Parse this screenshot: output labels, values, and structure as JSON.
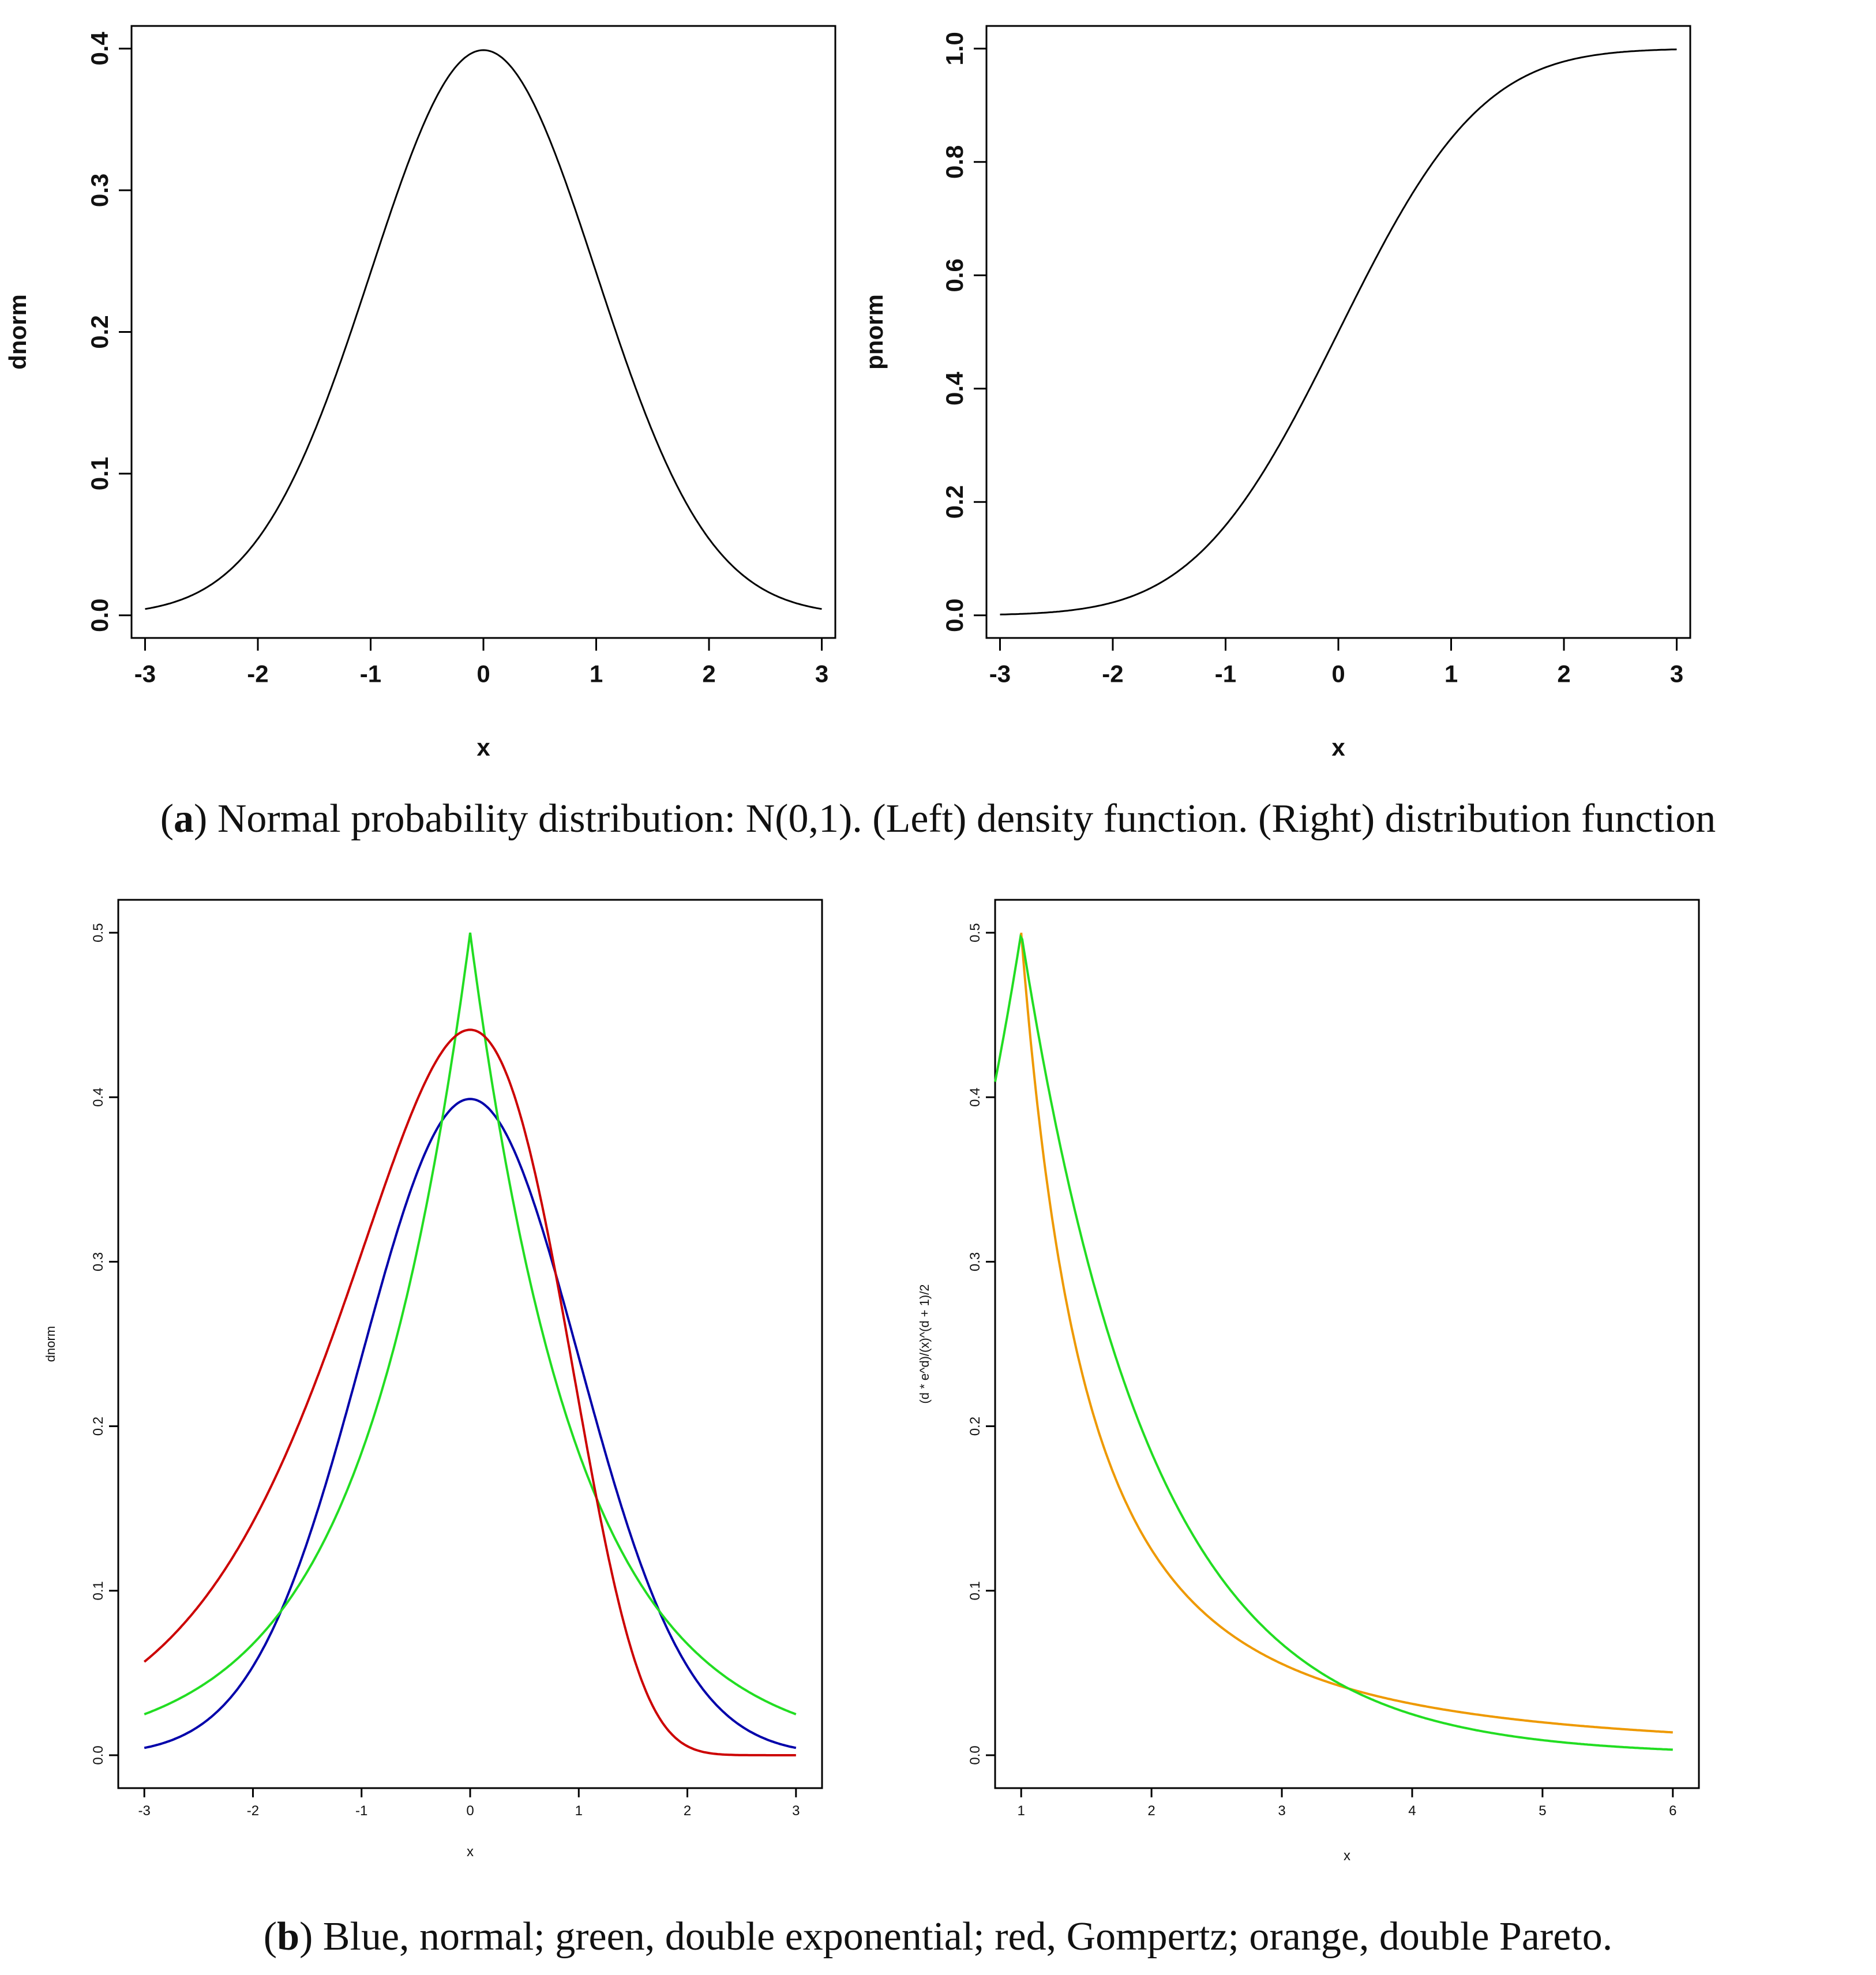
{
  "figure_a": {
    "caption_letter": "a",
    "caption_text": ") Normal probability distribution: N(0,1). (Left) density function. (Right) distribution function"
  },
  "figure_b": {
    "caption_letter": "b",
    "caption_text": ") Blue, normal; green, double exponential; red, Gompertz; orange, double Pareto."
  },
  "colors": {
    "axis": "#000000",
    "blue": "#0000aa",
    "green": "#22dd22",
    "red": "#cc0000",
    "orange": "#ee9900",
    "black": "#000000"
  },
  "chart_data": [
    {
      "id": "a-left",
      "type": "line",
      "xlabel": "x",
      "ylabel": "dnorm",
      "xlim": [
        -3.12,
        3.12
      ],
      "ylim": [
        -0.016,
        0.416
      ],
      "xticks": [
        -3,
        -2,
        -1,
        0,
        1,
        2,
        3
      ],
      "xtick_labels": [
        "-3",
        "-2",
        "-1",
        "0",
        "1",
        "2",
        "3"
      ],
      "yticks": [
        0.0,
        0.1,
        0.2,
        0.3,
        0.4
      ],
      "ytick_labels": [
        "0.0",
        "0.1",
        "0.2",
        "0.3",
        "0.4"
      ],
      "series": [
        {
          "name": "dnorm",
          "color": "black",
          "func": "normal_pdf",
          "x_from": -3,
          "x_to": 3
        }
      ]
    },
    {
      "id": "a-right",
      "type": "line",
      "xlabel": "x",
      "ylabel": "pnorm",
      "xlim": [
        -3.12,
        3.12
      ],
      "ylim": [
        -0.04,
        1.04
      ],
      "xticks": [
        -3,
        -2,
        -1,
        0,
        1,
        2,
        3
      ],
      "xtick_labels": [
        "-3",
        "-2",
        "-1",
        "0",
        "1",
        "2",
        "3"
      ],
      "yticks": [
        0.0,
        0.2,
        0.4,
        0.6,
        0.8,
        1.0
      ],
      "ytick_labels": [
        "0.0",
        "0.2",
        "0.4",
        "0.6",
        "0.8",
        "1.0"
      ],
      "series": [
        {
          "name": "pnorm",
          "color": "black",
          "func": "normal_cdf",
          "x_from": -3,
          "x_to": 3
        }
      ]
    },
    {
      "id": "b-left",
      "type": "line",
      "xlabel": "x",
      "ylabel": "dnorm",
      "xlim": [
        -3.24,
        3.24
      ],
      "ylim": [
        -0.02,
        0.52
      ],
      "xticks": [
        -3,
        -2,
        -1,
        0,
        1,
        2,
        3
      ],
      "xtick_labels": [
        "-3",
        "-2",
        "-1",
        "0",
        "1",
        "2",
        "3"
      ],
      "yticks": [
        0.0,
        0.1,
        0.2,
        0.3,
        0.4,
        0.5
      ],
      "ytick_labels": [
        "0.0",
        "0.1",
        "0.2",
        "0.3",
        "0.4",
        "0.5"
      ],
      "series": [
        {
          "name": "normal",
          "color": "blue",
          "func": "normal_pdf",
          "x_from": -3,
          "x_to": 3
        },
        {
          "name": "double exponential",
          "color": "green",
          "func": "laplace_pdf",
          "x_from": -3,
          "x_to": 3
        },
        {
          "name": "Gompertz",
          "color": "red",
          "func": "gompertz_pdf",
          "x_from": -3,
          "x_to": 3
        }
      ]
    },
    {
      "id": "b-right",
      "type": "line",
      "xlabel": "x",
      "ylabel": "(d * e^d)/(x)^(d + 1)/2",
      "xlim": [
        0.8,
        6.2
      ],
      "ylim": [
        -0.02,
        0.52
      ],
      "xticks": [
        1,
        2,
        3,
        4,
        5,
        6
      ],
      "xtick_labels": [
        "1",
        "2",
        "3",
        "4",
        "5",
        "6"
      ],
      "yticks": [
        0.0,
        0.1,
        0.2,
        0.3,
        0.4,
        0.5
      ],
      "ytick_labels": [
        "0.0",
        "0.1",
        "0.2",
        "0.3",
        "0.4",
        "0.5"
      ],
      "series": [
        {
          "name": "double Pareto",
          "color": "orange",
          "func": "pareto_pdf",
          "x_from": 1,
          "x_to": 6
        },
        {
          "name": "double exponential",
          "color": "green",
          "func": "laplace_shift_pdf",
          "x_from": 0.8,
          "x_to": 6
        }
      ]
    }
  ]
}
